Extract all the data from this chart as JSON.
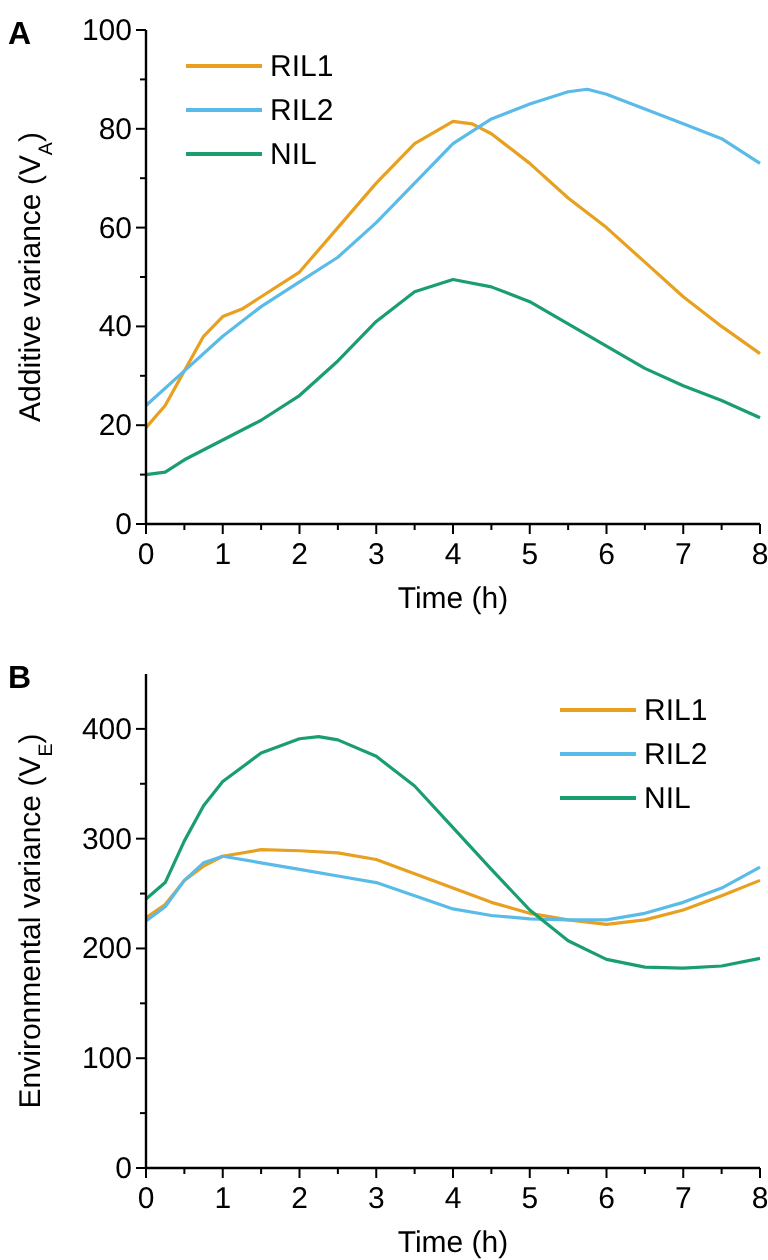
{
  "chart_data": [
    {
      "type": "line",
      "title": "A",
      "xlabel": "Time (h)",
      "ylabel": "Additive variance (V$_{A}$)",
      "xlim": [
        0,
        8
      ],
      "xticks": [
        0,
        {
          "value": 0.5,
          "label": null
        },
        1,
        {
          "value": 1.5,
          "label": null
        },
        2,
        {
          "value": 2.5,
          "label": null
        },
        3,
        {
          "value": 3.5,
          "label": null
        },
        4,
        {
          "value": 4.5,
          "label": null
        },
        5,
        {
          "value": 5.5,
          "label": null
        },
        6,
        {
          "value": 6.5,
          "label": null
        },
        7,
        {
          "value": 7.5,
          "label": null
        },
        8
      ],
      "ylim": [
        0,
        100
      ],
      "yticks": [
        0,
        {
          "value": 10,
          "label": null
        },
        20,
        {
          "value": 30,
          "label": null
        },
        40,
        {
          "value": 50,
          "label": null
        },
        60,
        {
          "value": 70,
          "label": null
        },
        80,
        {
          "value": 90,
          "label": null
        },
        100
      ],
      "legend": "top left",
      "grid": false,
      "marker": "none",
      "line_style": "solid",
      "series": [
        {
          "name": "RIL1",
          "color": "#e8a020",
          "x": [
            0,
            0.25,
            0.5,
            0.75,
            1,
            1.25,
            1.5,
            2,
            2.5,
            3,
            3.5,
            4,
            4.25,
            4.5,
            5,
            5.5,
            6,
            6.5,
            7,
            7.5,
            8
          ],
          "values": [
            19.5,
            24,
            31,
            38,
            42,
            43.5,
            46,
            51,
            60,
            69,
            77,
            81.5,
            81,
            79,
            73,
            66,
            60,
            53,
            46,
            40,
            34.5
          ]
        },
        {
          "name": "RIL2",
          "color": "#5bbbe8",
          "x": [
            0,
            0.5,
            1,
            1.5,
            2,
            2.5,
            3,
            3.5,
            4,
            4.5,
            5,
            5.5,
            5.75,
            6,
            6.5,
            7,
            7.5,
            8
          ],
          "values": [
            24,
            31,
            38,
            44,
            49,
            54,
            61,
            69,
            77,
            82,
            85,
            87.5,
            88,
            87,
            84,
            81,
            78,
            73
          ]
        },
        {
          "name": "NIL",
          "color": "#1a9e6e",
          "x": [
            0,
            0.25,
            0.5,
            1,
            1.5,
            2,
            2.5,
            3,
            3.5,
            4,
            4.5,
            5,
            5.5,
            6,
            6.5,
            7,
            7.5,
            8
          ],
          "values": [
            10,
            10.5,
            13,
            17,
            21,
            26,
            33,
            41,
            47,
            49.5,
            48,
            45,
            40.5,
            36,
            31.5,
            28,
            25,
            21.5
          ]
        }
      ]
    },
    {
      "type": "line",
      "title": "B",
      "xlabel": "Time (h)",
      "ylabel": "Environmental variance (V$_{E}$)",
      "xlim": [
        0,
        8
      ],
      "xticks": [
        0,
        {
          "value": 0.5,
          "label": null
        },
        1,
        {
          "value": 1.5,
          "label": null
        },
        2,
        {
          "value": 2.5,
          "label": null
        },
        3,
        {
          "value": 3.5,
          "label": null
        },
        4,
        {
          "value": 4.5,
          "label": null
        },
        5,
        {
          "value": 5.5,
          "label": null
        },
        6,
        {
          "value": 6.5,
          "label": null
        },
        7,
        {
          "value": 7.5,
          "label": null
        },
        8
      ],
      "ylim": [
        0,
        450
      ],
      "yticks": [
        0,
        {
          "value": 50,
          "label": null
        },
        100,
        {
          "value": 150,
          "label": null
        },
        200,
        {
          "value": 250,
          "label": null
        },
        300,
        {
          "value": 350,
          "label": null
        },
        400
      ],
      "legend": "top right",
      "grid": false,
      "marker": "none",
      "line_style": "solid",
      "series": [
        {
          "name": "RIL1",
          "color": "#e8a020",
          "x": [
            0,
            0.25,
            0.5,
            0.75,
            1,
            1.5,
            2,
            2.5,
            3,
            3.5,
            4,
            4.5,
            5,
            5.5,
            6,
            6.5,
            7,
            7.5,
            8
          ],
          "values": [
            228,
            240,
            262,
            275,
            284,
            290,
            289,
            287,
            281,
            268,
            255,
            242,
            232,
            226,
            222,
            226,
            235,
            248,
            262
          ]
        },
        {
          "name": "RIL2",
          "color": "#5bbbe8",
          "x": [
            0,
            0.25,
            0.5,
            0.75,
            1,
            1.5,
            2,
            2.5,
            3,
            3.5,
            4,
            4.5,
            5,
            5.5,
            6,
            6.5,
            7,
            7.5,
            8
          ],
          "values": [
            225,
            238,
            262,
            278,
            284,
            278,
            272,
            266,
            260,
            248,
            236,
            230,
            227,
            226,
            226,
            232,
            242,
            255,
            274
          ]
        },
        {
          "name": "NIL",
          "color": "#1a9e6e",
          "x": [
            0,
            0.25,
            0.5,
            0.75,
            1,
            1.5,
            2,
            2.25,
            2.5,
            3,
            3.5,
            4,
            4.5,
            5,
            5.5,
            6,
            6.5,
            7,
            7.5,
            8
          ],
          "values": [
            245,
            260,
            298,
            330,
            352,
            378,
            391,
            393,
            390,
            375,
            348,
            310,
            272,
            235,
            207,
            190,
            183,
            182,
            184,
            191
          ]
        }
      ]
    }
  ]
}
